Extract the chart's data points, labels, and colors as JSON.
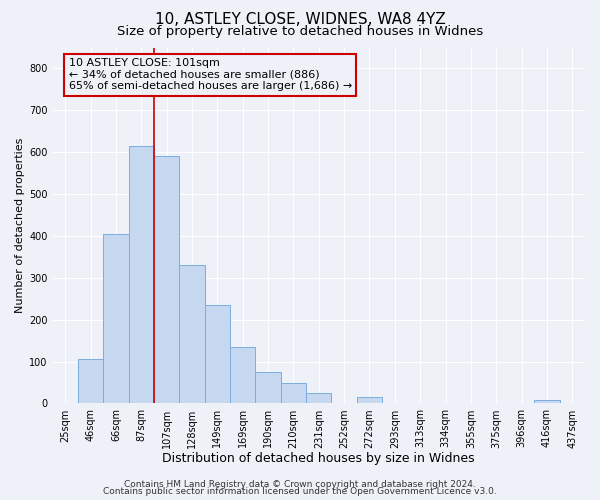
{
  "title": "10, ASTLEY CLOSE, WIDNES, WA8 4YZ",
  "subtitle": "Size of property relative to detached houses in Widnes",
  "xlabel": "Distribution of detached houses by size in Widnes",
  "ylabel": "Number of detached properties",
  "bin_labels": [
    "25sqm",
    "46sqm",
    "66sqm",
    "87sqm",
    "107sqm",
    "128sqm",
    "149sqm",
    "169sqm",
    "190sqm",
    "210sqm",
    "231sqm",
    "252sqm",
    "272sqm",
    "293sqm",
    "313sqm",
    "334sqm",
    "355sqm",
    "375sqm",
    "396sqm",
    "416sqm",
    "437sqm"
  ],
  "bar_heights": [
    0,
    105,
    405,
    615,
    590,
    330,
    235,
    135,
    75,
    48,
    25,
    0,
    15,
    0,
    0,
    0,
    0,
    0,
    0,
    8,
    0
  ],
  "bar_color": "#c5d8f0",
  "bar_edge_color": "#7aade0",
  "vline_x_index": 4,
  "vline_color": "#cc0000",
  "annotation_line1": "10 ASTLEY CLOSE: 101sqm",
  "annotation_line2": "← 34% of detached houses are smaller (886)",
  "annotation_line3": "65% of semi-detached houses are larger (1,686) →",
  "annotation_box_color": "#cc0000",
  "ylim": [
    0,
    850
  ],
  "yticks": [
    0,
    100,
    200,
    300,
    400,
    500,
    600,
    700,
    800
  ],
  "footer1": "Contains HM Land Registry data © Crown copyright and database right 2024.",
  "footer2": "Contains public sector information licensed under the Open Government Licence v3.0.",
  "background_color": "#eef2f8",
  "grid_color": "#ffffff",
  "title_fontsize": 11,
  "subtitle_fontsize": 9.5,
  "xlabel_fontsize": 9,
  "ylabel_fontsize": 8,
  "tick_fontsize": 7,
  "annotation_fontsize": 8,
  "footer_fontsize": 6.5
}
